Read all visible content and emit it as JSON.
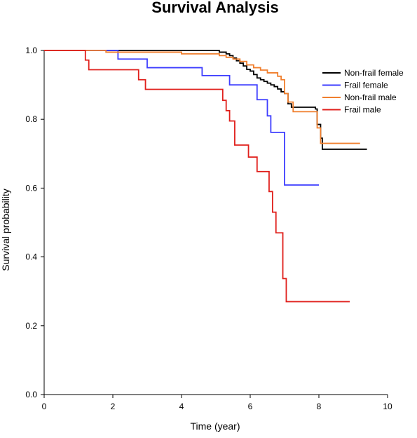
{
  "chart_data": {
    "type": "line",
    "title": "Survival Analysis",
    "xlabel": "Time (year)",
    "ylabel": "Survival probability",
    "xlim": [
      0,
      10
    ],
    "ylim": [
      0,
      1.0
    ],
    "xticks": [
      0,
      2,
      4,
      6,
      8,
      10
    ],
    "xtick_labels": [
      "0",
      "2",
      "4",
      "6",
      "8",
      "10"
    ],
    "yticks": [
      0,
      0.2,
      0.4,
      0.6,
      0.8,
      1.0
    ],
    "ytick_labels": [
      "0.0",
      "0.2",
      "0.4",
      "0.6",
      "0.8",
      "1.0"
    ],
    "grid": false,
    "legend_position": "top-right",
    "series": [
      {
        "name": "Non-frail female",
        "color": "#000000",
        "step": true,
        "points": [
          [
            0,
            1.0
          ],
          [
            5.0,
            1.0
          ],
          [
            5.1,
            0.995
          ],
          [
            5.3,
            0.99
          ],
          [
            5.4,
            0.985
          ],
          [
            5.5,
            0.978
          ],
          [
            5.6,
            0.97
          ],
          [
            5.7,
            0.963
          ],
          [
            5.8,
            0.955
          ],
          [
            5.9,
            0.945
          ],
          [
            6.0,
            0.94
          ],
          [
            6.1,
            0.93
          ],
          [
            6.2,
            0.92
          ],
          [
            6.3,
            0.915
          ],
          [
            6.4,
            0.91
          ],
          [
            6.5,
            0.905
          ],
          [
            6.6,
            0.9
          ],
          [
            6.7,
            0.895
          ],
          [
            6.8,
            0.888
          ],
          [
            6.9,
            0.88
          ],
          [
            7.0,
            0.875
          ],
          [
            7.1,
            0.845
          ],
          [
            7.2,
            0.835
          ],
          [
            7.5,
            0.835
          ],
          [
            7.9,
            0.83
          ],
          [
            7.95,
            0.785
          ],
          [
            8.05,
            0.745
          ],
          [
            8.1,
            0.713
          ],
          [
            9.4,
            0.713
          ]
        ]
      },
      {
        "name": "Frail female",
        "color": "#3d3dff",
        "step": true,
        "points": [
          [
            0,
            1.0
          ],
          [
            2.15,
            1.0
          ],
          [
            2.15,
            0.975
          ],
          [
            3.0,
            0.975
          ],
          [
            3.0,
            0.95
          ],
          [
            4.6,
            0.95
          ],
          [
            4.6,
            0.927
          ],
          [
            5.4,
            0.927
          ],
          [
            5.4,
            0.9
          ],
          [
            6.2,
            0.9
          ],
          [
            6.2,
            0.857
          ],
          [
            6.5,
            0.857
          ],
          [
            6.5,
            0.81
          ],
          [
            6.6,
            0.81
          ],
          [
            6.6,
            0.762
          ],
          [
            7.0,
            0.762
          ],
          [
            7.0,
            0.609
          ],
          [
            8.0,
            0.609
          ]
        ]
      },
      {
        "name": "Non-frail male",
        "color": "#f07f2e",
        "step": true,
        "points": [
          [
            0,
            1.0
          ],
          [
            1.8,
            1.0
          ],
          [
            1.8,
            0.995
          ],
          [
            4.0,
            0.995
          ],
          [
            4.0,
            0.99
          ],
          [
            5.0,
            0.99
          ],
          [
            5.1,
            0.985
          ],
          [
            5.3,
            0.98
          ],
          [
            5.5,
            0.975
          ],
          [
            5.7,
            0.968
          ],
          [
            5.9,
            0.958
          ],
          [
            6.1,
            0.95
          ],
          [
            6.3,
            0.943
          ],
          [
            6.5,
            0.935
          ],
          [
            6.7,
            0.935
          ],
          [
            6.8,
            0.925
          ],
          [
            6.9,
            0.915
          ],
          [
            7.0,
            0.895
          ],
          [
            7.0,
            0.875
          ],
          [
            7.1,
            0.85
          ],
          [
            7.25,
            0.822
          ],
          [
            7.5,
            0.822
          ],
          [
            7.9,
            0.822
          ],
          [
            7.95,
            0.775
          ],
          [
            8.05,
            0.73
          ],
          [
            9.2,
            0.73
          ]
        ]
      },
      {
        "name": "Frail male",
        "color": "#e0201c",
        "step": true,
        "points": [
          [
            0,
            1.0
          ],
          [
            1.2,
            1.0
          ],
          [
            1.2,
            0.972
          ],
          [
            1.3,
            0.972
          ],
          [
            1.3,
            0.944
          ],
          [
            2.75,
            0.944
          ],
          [
            2.75,
            0.915
          ],
          [
            2.95,
            0.915
          ],
          [
            2.95,
            0.887
          ],
          [
            5.2,
            0.887
          ],
          [
            5.2,
            0.855
          ],
          [
            5.3,
            0.855
          ],
          [
            5.3,
            0.825
          ],
          [
            5.4,
            0.825
          ],
          [
            5.4,
            0.795
          ],
          [
            5.55,
            0.795
          ],
          [
            5.55,
            0.725
          ],
          [
            5.95,
            0.725
          ],
          [
            5.95,
            0.69
          ],
          [
            6.2,
            0.69
          ],
          [
            6.2,
            0.648
          ],
          [
            6.55,
            0.648
          ],
          [
            6.55,
            0.59
          ],
          [
            6.65,
            0.59
          ],
          [
            6.65,
            0.53
          ],
          [
            6.75,
            0.53
          ],
          [
            6.75,
            0.47
          ],
          [
            6.95,
            0.47
          ],
          [
            6.95,
            0.337
          ],
          [
            7.05,
            0.337
          ],
          [
            7.05,
            0.27
          ],
          [
            8.9,
            0.27
          ]
        ]
      }
    ]
  }
}
